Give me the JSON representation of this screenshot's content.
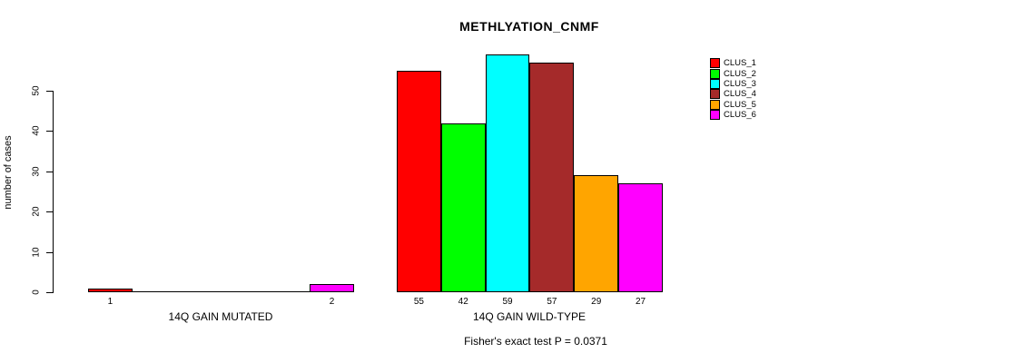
{
  "chart_data": {
    "type": "bar",
    "title": "METHLYATION_CNMF",
    "ylabel": "number of cases",
    "xlabel": "",
    "ylim": [
      0,
      59
    ],
    "yticks": [
      0,
      10,
      20,
      30,
      40,
      50
    ],
    "grid": false,
    "legend_position": "right",
    "series_names": [
      "CLUS_1",
      "CLUS_2",
      "CLUS_3",
      "CLUS_4",
      "CLUS_5",
      "CLUS_6"
    ],
    "series_colors": [
      "#ff0000",
      "#00ff00",
      "#00ffff",
      "#a52a2a",
      "#ffa500",
      "#ff00ff"
    ],
    "groups": [
      {
        "label": "14Q GAIN MUTATED",
        "values": [
          1,
          0,
          0,
          0,
          0,
          2
        ]
      },
      {
        "label": "14Q GAIN WILD-TYPE",
        "values": [
          55,
          42,
          59,
          57,
          29,
          27
        ]
      }
    ],
    "bar_value_labels": [
      [
        "1",
        "",
        "",
        "",
        "",
        "2"
      ],
      [
        "55",
        "42",
        "59",
        "57",
        "29",
        "27"
      ]
    ],
    "annotation": "Fisher's exact test P = 0.0371"
  }
}
